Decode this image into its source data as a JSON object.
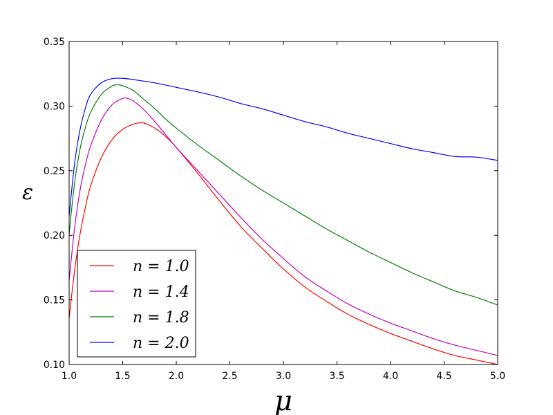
{
  "chart_data": {
    "type": "line",
    "xlabel": "μ",
    "ylabel": "ε",
    "xlim": [
      1.0,
      5.0
    ],
    "ylim": [
      0.1,
      0.35
    ],
    "x_ticks": [
      "1.0",
      "1.5",
      "2.0",
      "2.5",
      "3.0",
      "3.5",
      "4.0",
      "4.5",
      "5.0"
    ],
    "y_ticks": [
      "0.10",
      "0.15",
      "0.20",
      "0.25",
      "0.30",
      "0.35"
    ],
    "grid": false,
    "legend_position": "lower-left",
    "series": [
      {
        "name": "n = 1.0",
        "color": "#ff0000",
        "points": [
          [
            1.0,
            0.136
          ],
          [
            1.05,
            0.172
          ],
          [
            1.1,
            0.2
          ],
          [
            1.15,
            0.221
          ],
          [
            1.2,
            0.238
          ],
          [
            1.3,
            0.26
          ],
          [
            1.4,
            0.274
          ],
          [
            1.5,
            0.282
          ],
          [
            1.6,
            0.286
          ],
          [
            1.65,
            0.287
          ],
          [
            1.7,
            0.2868
          ],
          [
            1.8,
            0.283
          ],
          [
            1.9,
            0.2765
          ],
          [
            2.0,
            0.268
          ],
          [
            2.2,
            0.248
          ],
          [
            2.4,
            0.227
          ],
          [
            2.6,
            0.207
          ],
          [
            2.8,
            0.19
          ],
          [
            3.0,
            0.174
          ],
          [
            3.2,
            0.16
          ],
          [
            3.4,
            0.149
          ],
          [
            3.6,
            0.139
          ],
          [
            3.8,
            0.131
          ],
          [
            4.0,
            0.124
          ],
          [
            4.2,
            0.118
          ],
          [
            4.4,
            0.112
          ],
          [
            4.6,
            0.107
          ],
          [
            4.8,
            0.1035
          ],
          [
            5.0,
            0.1
          ]
        ]
      },
      {
        "name": "n = 1.4",
        "color": "#bf00bf",
        "points": [
          [
            1.0,
            0.165
          ],
          [
            1.05,
            0.205
          ],
          [
            1.1,
            0.234
          ],
          [
            1.15,
            0.254
          ],
          [
            1.2,
            0.269
          ],
          [
            1.3,
            0.289
          ],
          [
            1.4,
            0.301
          ],
          [
            1.5,
            0.306
          ],
          [
            1.55,
            0.3058
          ],
          [
            1.6,
            0.304
          ],
          [
            1.7,
            0.297
          ],
          [
            1.8,
            0.288
          ],
          [
            1.9,
            0.278
          ],
          [
            2.0,
            0.268
          ],
          [
            2.2,
            0.25
          ],
          [
            2.4,
            0.232
          ],
          [
            2.6,
            0.214
          ],
          [
            2.8,
            0.197
          ],
          [
            3.0,
            0.182
          ],
          [
            3.2,
            0.168
          ],
          [
            3.4,
            0.157
          ],
          [
            3.6,
            0.147
          ],
          [
            3.8,
            0.139
          ],
          [
            4.0,
            0.132
          ],
          [
            4.2,
            0.126
          ],
          [
            4.4,
            0.12
          ],
          [
            4.6,
            0.115
          ],
          [
            4.8,
            0.111
          ],
          [
            5.0,
            0.107
          ]
        ]
      },
      {
        "name": "n = 1.8",
        "color": "#008000",
        "points": [
          [
            1.0,
            0.201
          ],
          [
            1.05,
            0.24
          ],
          [
            1.1,
            0.266
          ],
          [
            1.15,
            0.283
          ],
          [
            1.2,
            0.295
          ],
          [
            1.3,
            0.309
          ],
          [
            1.4,
            0.3155
          ],
          [
            1.45,
            0.3165
          ],
          [
            1.5,
            0.3158
          ],
          [
            1.6,
            0.312
          ],
          [
            1.7,
            0.305
          ],
          [
            1.8,
            0.298
          ],
          [
            1.9,
            0.29
          ],
          [
            2.0,
            0.283
          ],
          [
            2.2,
            0.27
          ],
          [
            2.4,
            0.258
          ],
          [
            2.6,
            0.246
          ],
          [
            2.8,
            0.235
          ],
          [
            3.0,
            0.225
          ],
          [
            3.2,
            0.215
          ],
          [
            3.4,
            0.205
          ],
          [
            3.6,
            0.196
          ],
          [
            3.8,
            0.187
          ],
          [
            4.0,
            0.179
          ],
          [
            4.2,
            0.171
          ],
          [
            4.4,
            0.164
          ],
          [
            4.6,
            0.157
          ],
          [
            4.8,
            0.152
          ],
          [
            5.0,
            0.146
          ]
        ]
      },
      {
        "name": "n = 2.0",
        "color": "#0000ff",
        "points": [
          [
            1.0,
            0.215
          ],
          [
            1.05,
            0.255
          ],
          [
            1.1,
            0.281
          ],
          [
            1.15,
            0.298
          ],
          [
            1.2,
            0.309
          ],
          [
            1.3,
            0.318
          ],
          [
            1.4,
            0.3212
          ],
          [
            1.5,
            0.3215
          ],
          [
            1.6,
            0.3205
          ],
          [
            1.8,
            0.318
          ],
          [
            2.0,
            0.3145
          ],
          [
            2.2,
            0.311
          ],
          [
            2.4,
            0.307
          ],
          [
            2.6,
            0.302
          ],
          [
            2.8,
            0.298
          ],
          [
            3.0,
            0.293
          ],
          [
            3.2,
            0.288
          ],
          [
            3.4,
            0.284
          ],
          [
            3.6,
            0.279
          ],
          [
            3.8,
            0.275
          ],
          [
            4.0,
            0.271
          ],
          [
            4.2,
            0.267
          ],
          [
            4.4,
            0.264
          ],
          [
            4.6,
            0.261
          ],
          [
            4.8,
            0.2605
          ],
          [
            5.0,
            0.258
          ]
        ]
      }
    ]
  }
}
